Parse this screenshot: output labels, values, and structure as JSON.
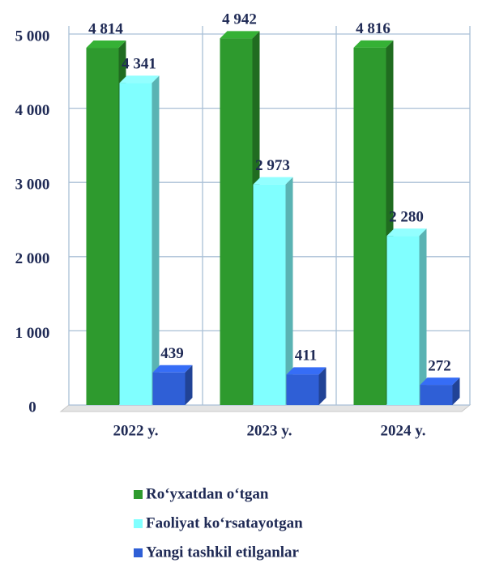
{
  "chart_data": {
    "type": "bar",
    "categories": [
      "2022 y.",
      "2023 y.",
      "2024 y."
    ],
    "series": [
      {
        "name": "Ro‘yxatdan o‘tgan",
        "color": "#2e9a2e",
        "values": [
          4814,
          4942,
          4816
        ],
        "value_labels": [
          "4 814",
          "4 942",
          "4 816"
        ]
      },
      {
        "name": "Faoliyat ko‘rsatayotgan",
        "color": "#80ffff",
        "values": [
          4341,
          2973,
          2280
        ],
        "value_labels": [
          "4 341",
          "2 973",
          "2 280"
        ]
      },
      {
        "name": "Yangi tashkil etilganlar",
        "color": "#2f5fd6",
        "values": [
          439,
          411,
          272
        ],
        "value_labels": [
          "439",
          "411",
          "272"
        ]
      }
    ],
    "ylim": [
      0,
      5000
    ],
    "yticks": [
      0,
      {
        "value": 1000,
        "label": "1 000"
      },
      {
        "value": 2000,
        "label": "2 000"
      },
      {
        "value": 3000,
        "label": "3 000"
      },
      {
        "value": 4000,
        "label": "4 000"
      },
      {
        "value": 5000,
        "label": "5 000"
      }
    ],
    "grid": true,
    "legend": "bottom"
  }
}
